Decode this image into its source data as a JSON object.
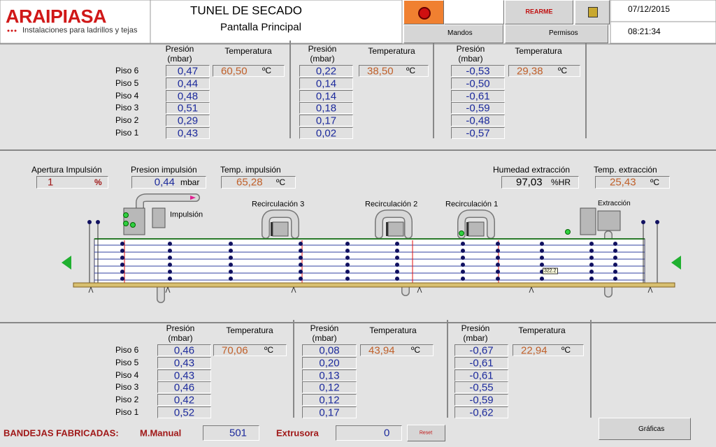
{
  "header": {
    "logo": "ARAIPIASA",
    "tagline": "Instalaciones para ladrillos y tejas",
    "title": "TUNEL DE SECADO",
    "subtitle": "Pantalla Principal",
    "buttons": {
      "rearme": "REARME",
      "mandos": "Mandos",
      "permisos": "Permisos"
    },
    "date": "07/12/2015",
    "time": "08:21:34"
  },
  "floors": [
    "Piso 6",
    "Piso 5",
    "Piso 4",
    "Piso 3",
    "Piso 2",
    "Piso 1"
  ],
  "labels": {
    "pressure": "Presión",
    "pressure_unit": "(mbar)",
    "temperature": "Temperatura",
    "temp_unit": "ºC"
  },
  "top_panel": {
    "groups": [
      {
        "pressures": [
          "0,47",
          "0,44",
          "0,48",
          "0,51",
          "0,29",
          "0,43"
        ],
        "temperature": "60,50"
      },
      {
        "pressures": [
          "0,22",
          "0,14",
          "0,14",
          "0,18",
          "0,17",
          "0,02"
        ],
        "temperature": "38,50"
      },
      {
        "pressures": [
          "-0,53",
          "-0,50",
          "-0,61",
          "-0,59",
          "-0,48",
          "-0,57"
        ],
        "temperature": "29,38"
      }
    ]
  },
  "process": {
    "readings": [
      {
        "label": "Apertura Impulsión",
        "value": "1",
        "unit": "%"
      },
      {
        "label": "Presion impulsión",
        "value": "0,44",
        "unit": "mbar"
      },
      {
        "label": "Temp. impulsión",
        "value": "65,28",
        "unit": "ºC"
      },
      {
        "label": "Humedad extracción",
        "value": "97,03",
        "unit": "%HR"
      },
      {
        "label": "Temp. extracción",
        "value": "25,43",
        "unit": "ºC"
      }
    ],
    "diagram": {
      "impulsion": "Impulsión",
      "recirculations": [
        "Recirculación 3",
        "Recirculación 2",
        "Recirculación 1"
      ],
      "extraction": "Extracción",
      "tag": "322.2"
    }
  },
  "bottom_panel": {
    "groups": [
      {
        "pressures": [
          "0,46",
          "0,43",
          "0,43",
          "0,46",
          "0,42",
          "0,52"
        ],
        "temperature": "70,06"
      },
      {
        "pressures": [
          "0,08",
          "0,20",
          "0,13",
          "0,12",
          "0,12",
          "0,17"
        ],
        "temperature": "43,94"
      },
      {
        "pressures": [
          "-0,67",
          "-0,61",
          "-0,61",
          "-0,55",
          "-0,59",
          "-0,62"
        ],
        "temperature": "22,94"
      }
    ]
  },
  "footer": {
    "label": "BANDEJAS FABRICADAS:",
    "manual_label": "M.Manual",
    "manual_value": "501",
    "extruder_label": "Extrusora",
    "extruder_value": "0",
    "reset": "Reset",
    "charts": "Gráficas"
  }
}
